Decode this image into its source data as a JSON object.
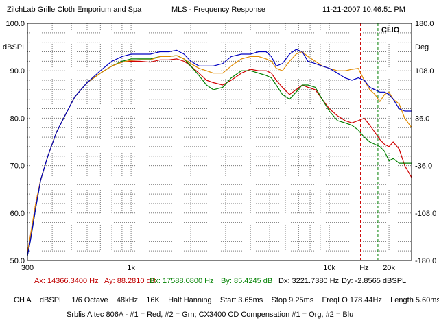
{
  "header": {
    "company": "ZilchLab Grille Cloth Emporium and Spa",
    "title": "MLS - Frequency Response",
    "timestamp": "11-21-2007 10.46.51 PM"
  },
  "cursor_readout": {
    "ax": "Ax: 14366.3400 Hz",
    "ay": "Ay: 88.2810 dB",
    "bx": "Bx: 17588.0800 Hz",
    "by": "By: 85.4245 dB",
    "dx": "Dx: 3221.7380 Hz",
    "dy": "Dy: -2.8565 dBSPL"
  },
  "info": {
    "channel": "CH A",
    "unit": "dBSPL",
    "smoothing": "1/6 Octave",
    "rate": "48kHz",
    "size": "16K",
    "window": "Half Hanning",
    "start": "Start 3.65ms",
    "stop": "Stop 9.25ms",
    "freqlo": "FreqLO 178.44Hz",
    "length": "Length 5.60ms"
  },
  "legend_text": "Srblis Altec 806A - #1 = Red, #2 = Grn; CX3400 CD Compensation #1 = Org, #2 = Blu",
  "brand": "CLIO",
  "colors": {
    "red": "#d00000",
    "green": "#008000",
    "orange": "#e08a00",
    "blue": "#0000c0",
    "grid": "#7a7a7a",
    "cursor_a": "#cc0000",
    "cursor_b": "#008000"
  },
  "chart_data": {
    "type": "line",
    "title": "MLS - Frequency Response",
    "xscale": "log",
    "xlim": [
      300,
      26000
    ],
    "ylim": [
      50,
      100
    ],
    "y2lim": [
      -180,
      180
    ],
    "ylabel": "dBSPL",
    "y2label": "Deg",
    "xlabel": "Hz",
    "grid": true,
    "x_ticks": [
      {
        "v": 300,
        "label": "300"
      },
      {
        "v": 1000,
        "label": "1k"
      },
      {
        "v": 10000,
        "label": "10k"
      },
      {
        "v": 15000,
        "label": "Hz"
      },
      {
        "v": 20000,
        "label": "20k"
      }
    ],
    "y_ticks": [
      {
        "v": 100,
        "label": "100.0"
      },
      {
        "v": 90,
        "label": "90.0"
      },
      {
        "v": 80,
        "label": "80.0"
      },
      {
        "v": 70,
        "label": "70.0"
      },
      {
        "v": 60,
        "label": "60.0"
      },
      {
        "v": 50,
        "label": "50.0"
      }
    ],
    "y2_ticks": [
      {
        "v": 180,
        "label": "180.0"
      },
      {
        "v": 108,
        "label": "108.0"
      },
      {
        "v": 36,
        "label": "36.0"
      },
      {
        "v": -36,
        "label": "-36.0"
      },
      {
        "v": -108,
        "label": "-108.0"
      },
      {
        "v": -180,
        "label": "-180.0"
      }
    ],
    "cursors": [
      {
        "name": "A",
        "x": 14366.34,
        "color": "#cc0000"
      },
      {
        "name": "B",
        "x": 17588.08,
        "color": "#008000"
      }
    ],
    "series": [
      {
        "color": "#d00000",
        "x": [
          300,
          310,
          330,
          350,
          380,
          420,
          470,
          520,
          600,
          700,
          800,
          900,
          1000,
          1100,
          1250,
          1400,
          1550,
          1700,
          1850,
          2000,
          2200,
          2400,
          2600,
          2900,
          3200,
          3600,
          4000,
          4400,
          4800,
          5100,
          5400,
          5800,
          6300,
          6800,
          7300,
          7800,
          8500,
          9200,
          10000,
          11000,
          12000,
          13000,
          14000,
          15000,
          16000,
          17000,
          18000,
          19000,
          20000,
          21000,
          22500,
          24000,
          26000
        ],
        "y": [
          51.5,
          55,
          62,
          67,
          72,
          77,
          81,
          84.5,
          87.5,
          89.5,
          91,
          91.8,
          92,
          92,
          91.8,
          92.3,
          92.3,
          92.5,
          92,
          91,
          89.5,
          88,
          87.5,
          87,
          88,
          89.5,
          90.3,
          90,
          90,
          89.5,
          88,
          86.5,
          85,
          86,
          87,
          86.5,
          86,
          84,
          82,
          80.5,
          79.5,
          79,
          79.5,
          80,
          78.5,
          77,
          75.5,
          74.5,
          74,
          75,
          73.5,
          70,
          67.5
        ]
      },
      {
        "color": "#008000",
        "x": [
          300,
          310,
          330,
          350,
          380,
          420,
          470,
          520,
          600,
          700,
          800,
          900,
          1000,
          1100,
          1250,
          1400,
          1550,
          1700,
          1850,
          2000,
          2200,
          2400,
          2600,
          2900,
          3200,
          3600,
          4000,
          4400,
          4800,
          5100,
          5400,
          5800,
          6300,
          6800,
          7300,
          7800,
          8500,
          9200,
          10000,
          11000,
          12000,
          13000,
          14000,
          15000,
          16000,
          17000,
          18000,
          19000,
          20000,
          21000,
          22500,
          24000,
          26000
        ],
        "y": [
          51,
          54,
          61,
          67,
          72,
          77,
          81,
          84.5,
          87.5,
          89.5,
          91,
          92,
          92.5,
          92.5,
          92.5,
          93,
          93,
          93.2,
          92.5,
          91,
          89,
          87,
          86,
          86.5,
          88.5,
          90,
          90,
          89.5,
          89,
          88.5,
          87,
          85,
          84,
          85.5,
          87,
          87,
          86.5,
          84,
          81.5,
          79.5,
          79,
          78.5,
          77.5,
          76,
          75,
          74.5,
          74,
          73,
          71,
          71.5,
          70.5,
          70.5,
          70.5
        ]
      },
      {
        "color": "#e08a00",
        "x": [
          300,
          310,
          330,
          350,
          380,
          420,
          470,
          520,
          600,
          700,
          800,
          900,
          1000,
          1100,
          1250,
          1400,
          1550,
          1700,
          1850,
          2000,
          2200,
          2400,
          2600,
          2900,
          3200,
          3600,
          4000,
          4400,
          4800,
          5100,
          5400,
          5800,
          6300,
          6800,
          7300,
          7800,
          8500,
          9200,
          10000,
          11000,
          12000,
          13000,
          14000,
          15000,
          16000,
          17000,
          18000,
          19000,
          20000,
          21000,
          22500,
          24000,
          26000
        ],
        "y": [
          51.5,
          55,
          62,
          67,
          72,
          77,
          81,
          84.5,
          87.5,
          89.5,
          91,
          91.8,
          92.2,
          92.3,
          92.3,
          93,
          93,
          93.2,
          92.5,
          91.5,
          90.5,
          90,
          89.5,
          89.5,
          91,
          92.5,
          93,
          93,
          92.5,
          92,
          90.5,
          90,
          92,
          93.5,
          94,
          93,
          92,
          91,
          90.5,
          90,
          90,
          90.3,
          90.5,
          88,
          86,
          85,
          83.5,
          85,
          85.5,
          84,
          83,
          80,
          78
        ]
      },
      {
        "color": "#0000c0",
        "x": [
          300,
          310,
          330,
          350,
          380,
          420,
          470,
          520,
          600,
          700,
          800,
          900,
          1000,
          1100,
          1250,
          1400,
          1550,
          1700,
          1850,
          2000,
          2200,
          2400,
          2600,
          2900,
          3200,
          3600,
          4000,
          4400,
          4800,
          5100,
          5400,
          5800,
          6300,
          6800,
          7300,
          7800,
          8500,
          9200,
          10000,
          11000,
          12000,
          13000,
          14000,
          15000,
          16000,
          17000,
          18000,
          19000,
          20000,
          21000,
          22500,
          24000,
          26000
        ],
        "y": [
          51,
          54,
          61,
          67,
          72,
          77,
          81,
          84.5,
          87.5,
          90,
          92,
          93,
          93.5,
          93.5,
          93.5,
          94,
          94,
          94.3,
          93.5,
          92,
          91,
          91,
          91,
          91.5,
          93,
          93.5,
          93.5,
          94,
          94,
          93,
          91,
          91.5,
          93.5,
          94.5,
          94,
          92,
          91.5,
          91,
          90.5,
          89.5,
          88.5,
          88,
          88.5,
          88,
          86.5,
          86,
          85.5,
          85.5,
          85,
          84,
          82,
          81.5,
          81.5
        ]
      }
    ]
  }
}
